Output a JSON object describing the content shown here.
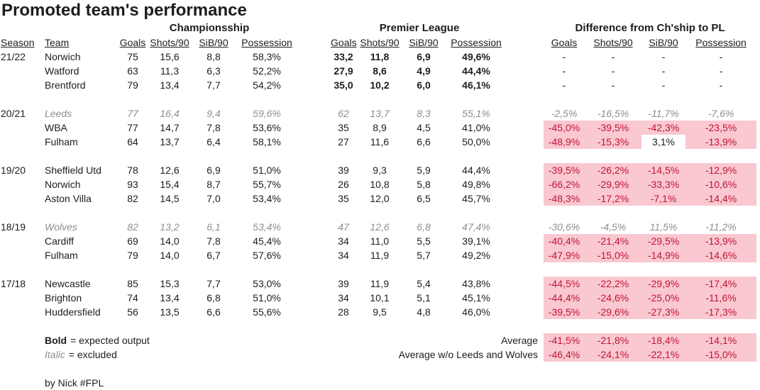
{
  "chart_data": {
    "type": "table",
    "title": "Promoted team's performance",
    "section_headers": [
      "Championsship",
      "Premier League",
      "Difference from Ch'ship to PL"
    ],
    "row_headers": [
      "Season",
      "Team"
    ],
    "stat_headers": [
      "Goals",
      "Shots/90",
      "SiB/90",
      "Possession"
    ],
    "colors": {
      "highlight_bg": "#f9c8d0",
      "highlight_text": "#c21436",
      "excluded_text": "#8f8f8f",
      "text": "#1d1d1d"
    },
    "groups": [
      {
        "season": "21/22",
        "teams": [
          {
            "name": "Norwich",
            "style": "promoted",
            "championship": [
              "75",
              "15,6",
              "8,8",
              "58,3%"
            ],
            "premier_league": [
              "33,2",
              "11,8",
              "6,9",
              "49,6%"
            ],
            "difference": [
              "-",
              "-",
              "-",
              "-"
            ]
          },
          {
            "name": "Watford",
            "style": "promoted",
            "championship": [
              "63",
              "11,3",
              "6,3",
              "52,2%"
            ],
            "premier_league": [
              "27,9",
              "8,6",
              "4,9",
              "44,4%"
            ],
            "difference": [
              "-",
              "-",
              "-",
              "-"
            ]
          },
          {
            "name": "Brentford",
            "style": "promoted",
            "championship": [
              "79",
              "13,4",
              "7,7",
              "54,2%"
            ],
            "premier_league": [
              "35,0",
              "10,2",
              "6,0",
              "46,1%"
            ],
            "difference": [
              "-",
              "-",
              "-",
              "-"
            ]
          }
        ]
      },
      {
        "season": "20/21",
        "teams": [
          {
            "name": "Leeds",
            "style": "excluded",
            "championship": [
              "77",
              "16,4",
              "9,4",
              "59,6%"
            ],
            "premier_league": [
              "62",
              "13,7",
              "8,3",
              "55,1%"
            ],
            "difference": [
              "-2,5%",
              "-16,5%",
              "-11,7%",
              "-7,6%"
            ]
          },
          {
            "name": "WBA",
            "style": "normal",
            "championship": [
              "77",
              "14,7",
              "7,8",
              "53,6%"
            ],
            "premier_league": [
              "35",
              "8,9",
              "4,5",
              "41,0%"
            ],
            "difference": [
              "-45,0%",
              "-39,5%",
              "-42,3%",
              "-23,5%"
            ]
          },
          {
            "name": "Fulham",
            "style": "normal",
            "championship": [
              "64",
              "13,7",
              "6,4",
              "58,1%"
            ],
            "premier_league": [
              "27",
              "11,6",
              "6,6",
              "50,0%"
            ],
            "difference": [
              "-48,9%",
              "-15,3%",
              "3,1%",
              "-13,9%"
            ],
            "diff_plain_indices": [
              2
            ]
          }
        ]
      },
      {
        "season": "19/20",
        "teams": [
          {
            "name": "Sheffield Utd",
            "style": "normal",
            "championship": [
              "78",
              "12,6",
              "6,9",
              "51,0%"
            ],
            "premier_league": [
              "39",
              "9,3",
              "5,9",
              "44,4%"
            ],
            "difference": [
              "-39,5%",
              "-26,2%",
              "-14,5%",
              "-12,9%"
            ]
          },
          {
            "name": "Norwich",
            "style": "normal",
            "championship": [
              "93",
              "15,4",
              "8,7",
              "55,7%"
            ],
            "premier_league": [
              "26",
              "10,8",
              "5,8",
              "49,8%"
            ],
            "difference": [
              "-66,2%",
              "-29,9%",
              "-33,3%",
              "-10,6%"
            ]
          },
          {
            "name": "Aston Villa",
            "style": "normal",
            "championship": [
              "82",
              "14,5",
              "7,0",
              "53,4%"
            ],
            "premier_league": [
              "35",
              "12,0",
              "6,5",
              "45,7%"
            ],
            "difference": [
              "-48,3%",
              "-17,2%",
              "-7,1%",
              "-14,4%"
            ]
          }
        ]
      },
      {
        "season": "18/19",
        "teams": [
          {
            "name": "Wolves",
            "style": "excluded",
            "championship": [
              "82",
              "13,2",
              "6,1",
              "53,4%"
            ],
            "premier_league": [
              "47",
              "12,6",
              "6,8",
              "47,4%"
            ],
            "difference": [
              "-30,6%",
              "-4,5%",
              "11,5%",
              "-11,2%"
            ]
          },
          {
            "name": "Cardiff",
            "style": "normal",
            "championship": [
              "69",
              "14,0",
              "7,8",
              "45,4%"
            ],
            "premier_league": [
              "34",
              "11,0",
              "5,5",
              "39,1%"
            ],
            "difference": [
              "-40,4%",
              "-21,4%",
              "-29,5%",
              "-13,9%"
            ]
          },
          {
            "name": "Fulham",
            "style": "normal",
            "championship": [
              "79",
              "14,0",
              "6,7",
              "57,6%"
            ],
            "premier_league": [
              "34",
              "11,9",
              "5,7",
              "49,2%"
            ],
            "difference": [
              "-47,9%",
              "-15,0%",
              "-14,9%",
              "-14,6%"
            ]
          }
        ]
      },
      {
        "season": "17/18",
        "teams": [
          {
            "name": "Newcastle",
            "style": "normal",
            "championship": [
              "85",
              "15,3",
              "7,7",
              "53,0%"
            ],
            "premier_league": [
              "39",
              "11,9",
              "5,4",
              "43,8%"
            ],
            "difference": [
              "-44,5%",
              "-22,2%",
              "-29,9%",
              "-17,4%"
            ]
          },
          {
            "name": "Brighton",
            "style": "normal",
            "championship": [
              "74",
              "13,4",
              "6,8",
              "51,0%"
            ],
            "premier_league": [
              "34",
              "10,1",
              "5,1",
              "45,1%"
            ],
            "difference": [
              "-44,4%",
              "-24,6%",
              "-25,0%",
              "-11,6%"
            ]
          },
          {
            "name": "Huddersfield",
            "style": "normal",
            "championship": [
              "56",
              "13,5",
              "6,6",
              "55,6%"
            ],
            "premier_league": [
              "28",
              "9,5",
              "4,8",
              "46,0%"
            ],
            "difference": [
              "-39,5%",
              "-29,6%",
              "-27,3%",
              "-17,3%"
            ]
          }
        ]
      }
    ],
    "legend": [
      {
        "key": "Bold",
        "key_style": "bold",
        "text": "= expected output"
      },
      {
        "key": "Italic",
        "key_style": "italic",
        "text": "= excluded"
      }
    ],
    "averages": [
      {
        "label": "Average",
        "values": [
          "-41,5%",
          "-21,8%",
          "-18,4%",
          "-14,1%"
        ]
      },
      {
        "label": "Average w/o Leeds and Wolves",
        "values": [
          "-46,4%",
          "-24,1%",
          "-22,1%",
          "-15,0%"
        ]
      }
    ],
    "byline": "by Nick #FPL"
  }
}
